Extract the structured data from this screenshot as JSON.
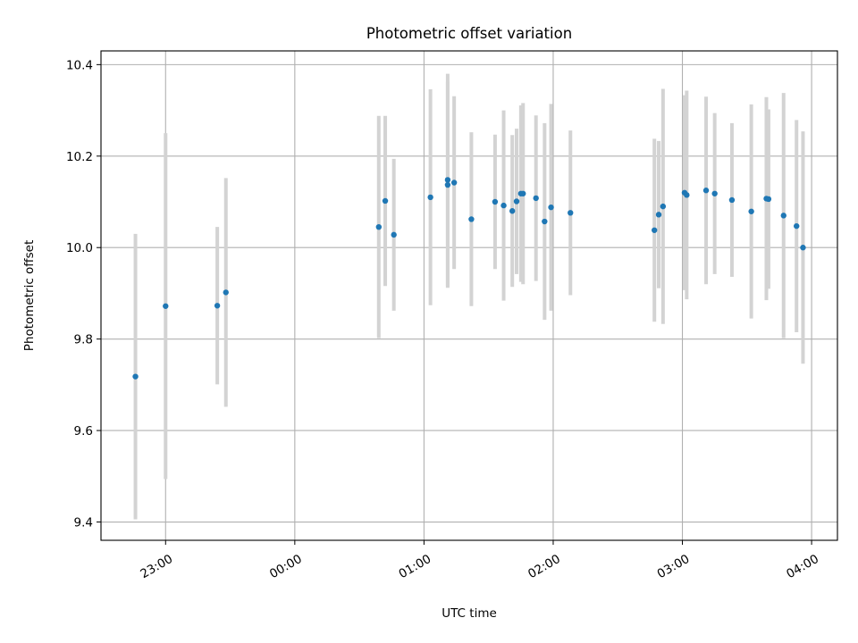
{
  "chart_data": {
    "type": "scatter",
    "title": "Photometric offset variation",
    "xlabel": "UTC time",
    "ylabel": "Photometric offset",
    "xlim": [
      "22:30",
      "04:12"
    ],
    "ylim": [
      9.36,
      10.43
    ],
    "grid": true,
    "x_ticks": [
      "23:00",
      "00:00",
      "01:00",
      "02:00",
      "03:00",
      "04:00"
    ],
    "y_ticks": [
      9.4,
      9.6,
      9.8,
      10.0,
      10.2,
      10.4
    ],
    "y_tick_labels": [
      "9.4",
      "9.6",
      "9.8",
      "10.0",
      "10.2",
      "10.4"
    ],
    "errorbar_color": "#d3d3d3",
    "marker_color": "#1f77b4",
    "points": [
      {
        "x": "22:46",
        "y": 9.718,
        "err": 0.312
      },
      {
        "x": "23:00",
        "y": 9.872,
        "err": 0.378
      },
      {
        "x": "23:24",
        "y": 9.873,
        "err": 0.172
      },
      {
        "x": "23:28",
        "y": 9.902,
        "err": 0.25
      },
      {
        "x": "00:39",
        "y": 10.045,
        "err": 0.243
      },
      {
        "x": "00:42",
        "y": 10.102,
        "err": 0.186
      },
      {
        "x": "00:46",
        "y": 10.028,
        "err": 0.166
      },
      {
        "x": "01:03",
        "y": 10.11,
        "err": 0.236
      },
      {
        "x": "01:11",
        "y": 10.148,
        "err": 0.232
      },
      {
        "x": "01:11",
        "y": 10.137,
        "err": 0.225
      },
      {
        "x": "01:14",
        "y": 10.142,
        "err": 0.189
      },
      {
        "x": "01:22",
        "y": 10.062,
        "err": 0.19
      },
      {
        "x": "01:33",
        "y": 10.1,
        "err": 0.147
      },
      {
        "x": "01:37",
        "y": 10.092,
        "err": 0.208
      },
      {
        "x": "01:41",
        "y": 10.08,
        "err": 0.166
      },
      {
        "x": "01:43",
        "y": 10.101,
        "err": 0.159
      },
      {
        "x": "01:45",
        "y": 10.118,
        "err": 0.193
      },
      {
        "x": "01:46",
        "y": 10.118,
        "err": 0.198
      },
      {
        "x": "01:52",
        "y": 10.108,
        "err": 0.181
      },
      {
        "x": "01:56",
        "y": 10.057,
        "err": 0.215
      },
      {
        "x": "01:59",
        "y": 10.088,
        "err": 0.226
      },
      {
        "x": "02:08",
        "y": 10.076,
        "err": 0.18
      },
      {
        "x": "02:47",
        "y": 10.038,
        "err": 0.2
      },
      {
        "x": "02:49",
        "y": 10.072,
        "err": 0.161
      },
      {
        "x": "02:51",
        "y": 10.09,
        "err": 0.257
      },
      {
        "x": "03:01",
        "y": 10.12,
        "err": 0.213
      },
      {
        "x": "03:02",
        "y": 10.115,
        "err": 0.228
      },
      {
        "x": "03:11",
        "y": 10.125,
        "err": 0.205
      },
      {
        "x": "03:15",
        "y": 10.118,
        "err": 0.176
      },
      {
        "x": "03:23",
        "y": 10.104,
        "err": 0.168
      },
      {
        "x": "03:32",
        "y": 10.079,
        "err": 0.234
      },
      {
        "x": "03:39",
        "y": 10.107,
        "err": 0.222
      },
      {
        "x": "03:40",
        "y": 10.106,
        "err": 0.196
      },
      {
        "x": "03:47",
        "y": 10.07,
        "err": 0.268
      },
      {
        "x": "03:53",
        "y": 10.047,
        "err": 0.232
      },
      {
        "x": "03:56",
        "y": 10.0,
        "err": 0.254
      }
    ]
  }
}
